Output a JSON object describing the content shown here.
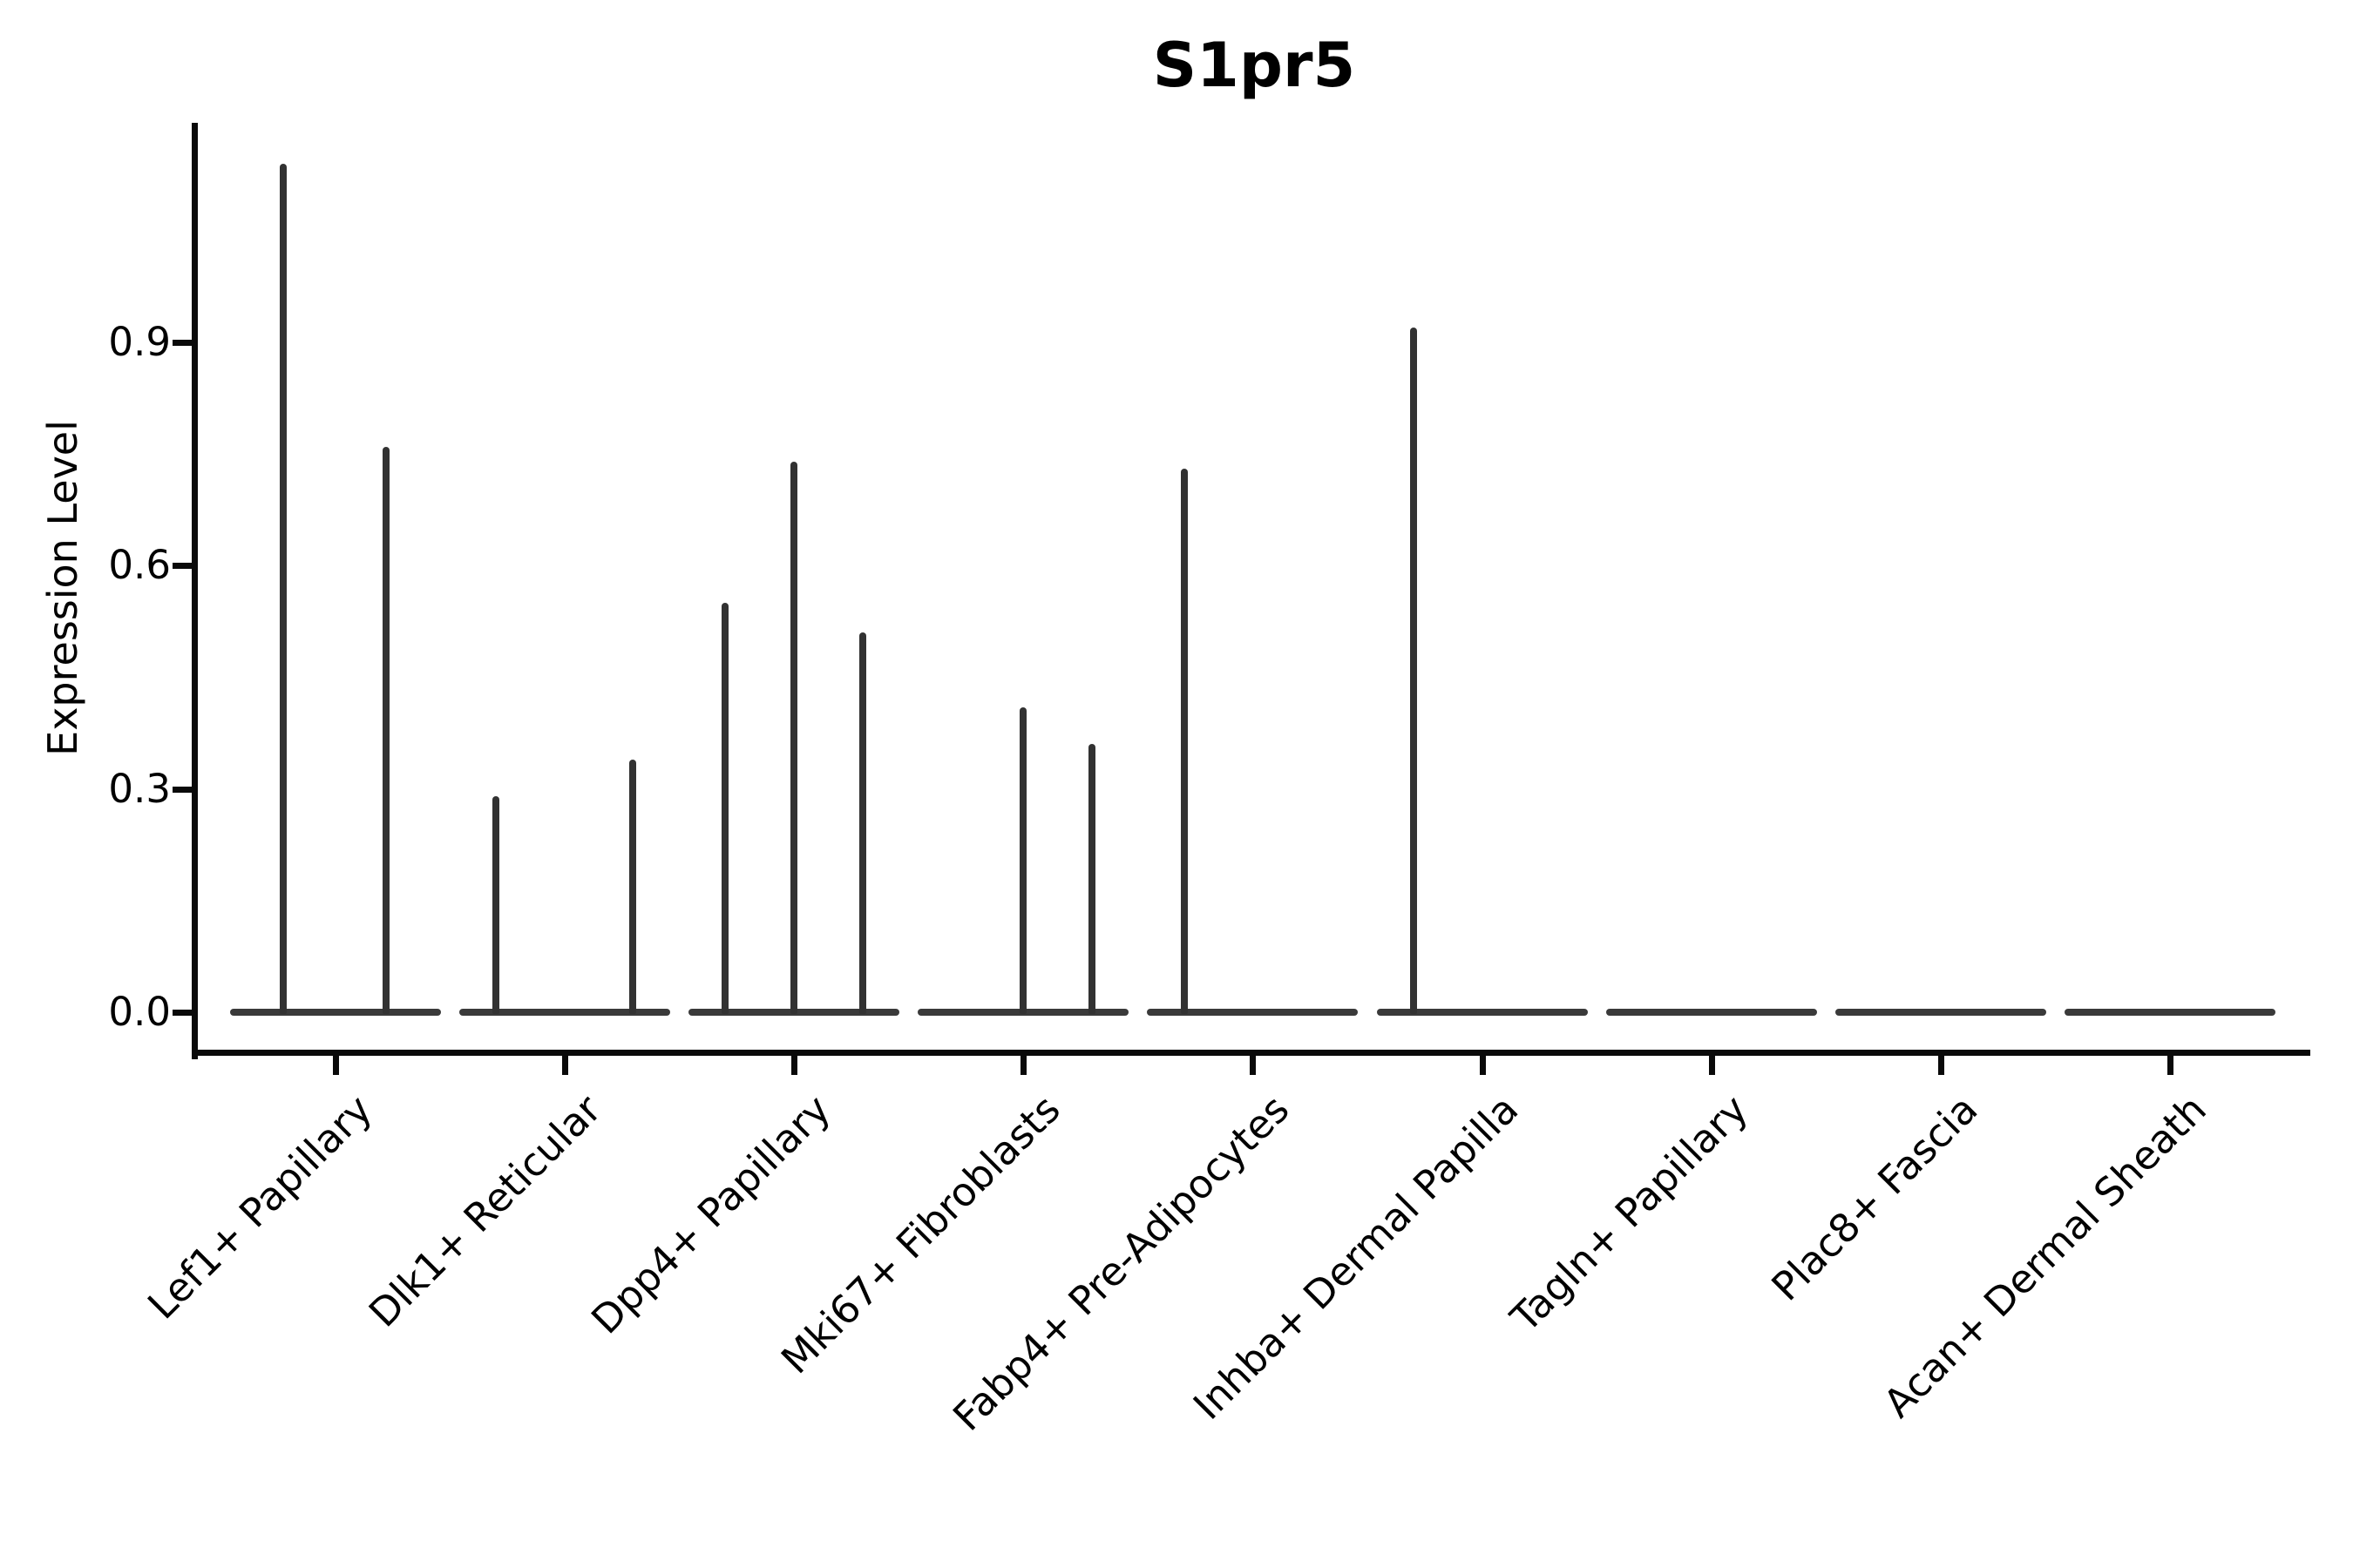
{
  "chart_data": {
    "type": "violin",
    "title": "S1pr5",
    "ylabel": "Expression Level",
    "xlabel": "",
    "ytick_labels": [
      "0.0",
      "0.3",
      "0.6",
      "0.9"
    ],
    "ytick_values": [
      0.0,
      0.3,
      0.6,
      0.9
    ],
    "ylim": [
      0.0,
      1.2
    ],
    "grid": false,
    "legend": "none",
    "categories": [
      "Lef1+ Papillary",
      "Dlk1+ Reticular",
      "Dpp4+ Papillary",
      "Mki67+ Fibroblasts",
      "Fabp4+ Pre-Adipocytes",
      "Inhba+ Dermal Papilla",
      "Tagln+ Papillary",
      "Plac8+ Fascia",
      "Acan+ Dermal Sheath"
    ],
    "violins": [
      {
        "category": "Lef1+ Papillary",
        "base_value": 0.0,
        "spikes": [
          {
            "dx": -60,
            "max": 1.14
          },
          {
            "dx": 58,
            "max": 0.76
          }
        ]
      },
      {
        "category": "Dlk1+ Reticular",
        "base_value": 0.0,
        "spikes": [
          {
            "dx": -79,
            "max": 0.29
          },
          {
            "dx": 78,
            "max": 0.34
          }
        ]
      },
      {
        "category": "Dpp4+ Papillary",
        "base_value": 0.0,
        "spikes": [
          {
            "dx": -79,
            "max": 0.55
          },
          {
            "dx": 0,
            "max": 0.74
          },
          {
            "dx": 79,
            "max": 0.51
          }
        ]
      },
      {
        "category": "Mki67+ Fibroblasts",
        "base_value": 0.0,
        "spikes": [
          {
            "dx": 0,
            "max": 0.41
          },
          {
            "dx": 79,
            "max": 0.36
          }
        ]
      },
      {
        "category": "Fabp4+ Pre-Adipocytes",
        "base_value": 0.0,
        "spikes": [
          {
            "dx": -78,
            "max": 0.73
          }
        ]
      },
      {
        "category": "Inhba+ Dermal Papilla",
        "base_value": 0.0,
        "spikes": [
          {
            "dx": -79,
            "max": 0.92
          }
        ]
      },
      {
        "category": "Tagln+ Papillary",
        "base_value": 0.0,
        "spikes": []
      },
      {
        "category": "Plac8+ Fascia",
        "base_value": 0.0,
        "spikes": []
      },
      {
        "category": "Acan+ Dermal Sheath",
        "base_value": 0.0,
        "spikes": []
      }
    ],
    "colors": {
      "violin_stroke": "#323232",
      "baseline_stroke": "#3a3a3a",
      "axis": "#0a0a0a",
      "text": "#000000",
      "background": "#ffffff"
    }
  }
}
